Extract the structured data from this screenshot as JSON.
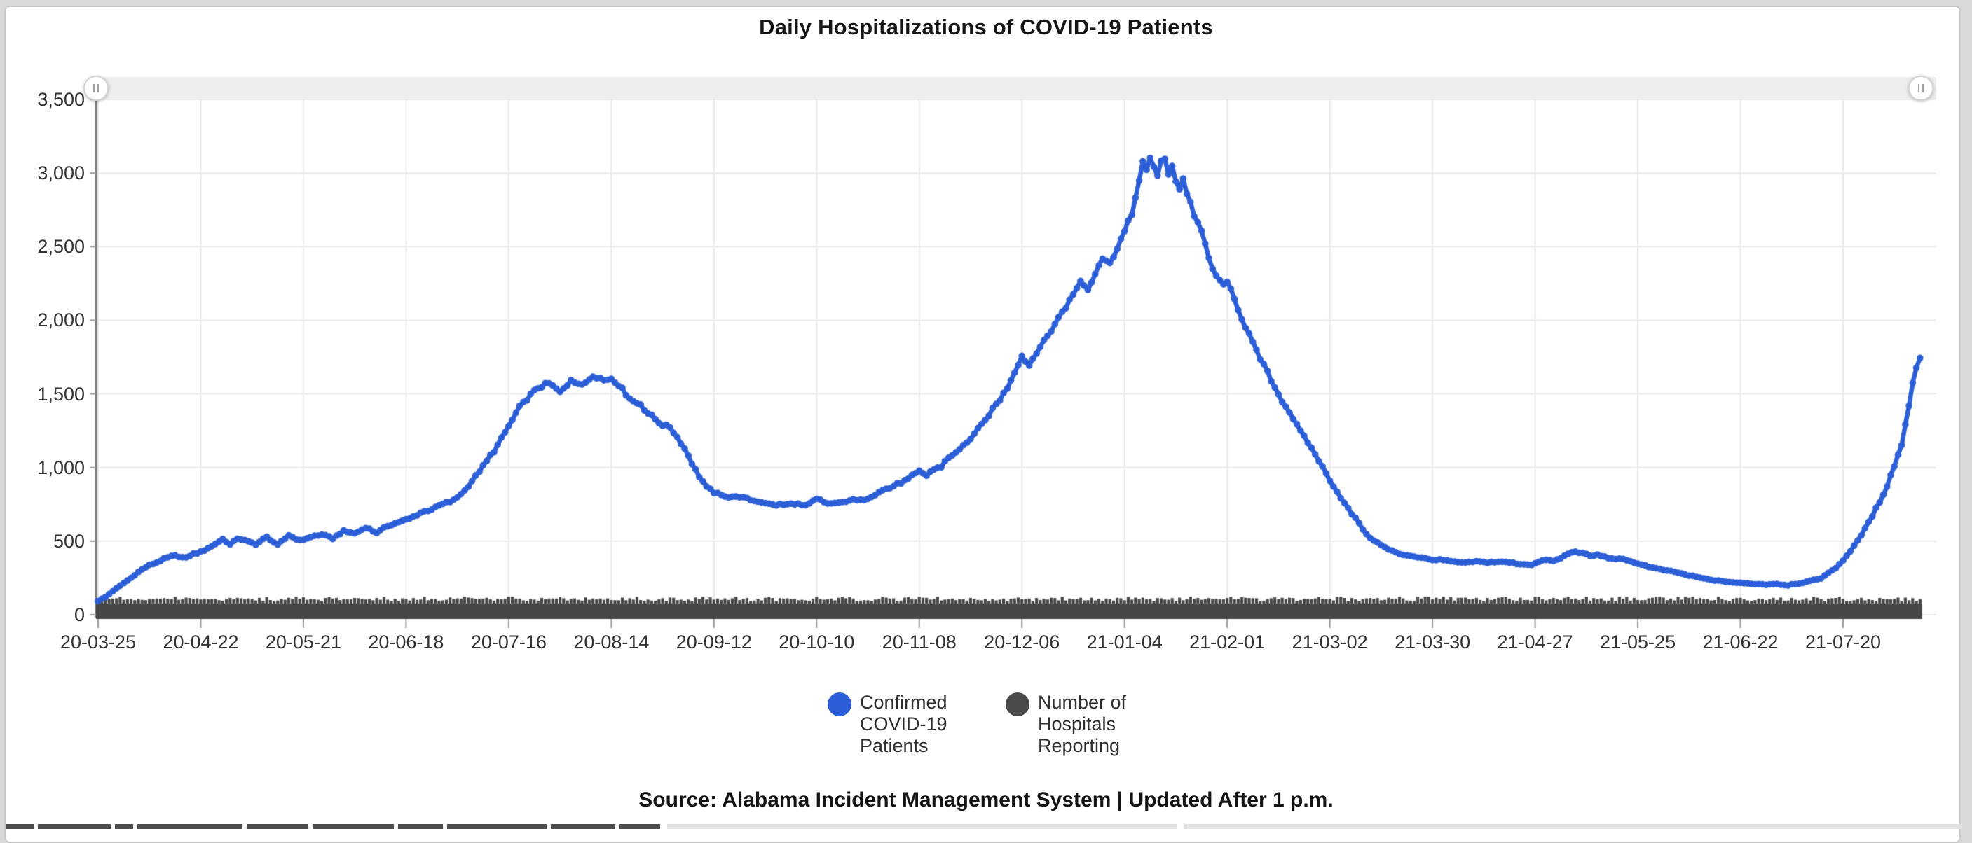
{
  "page": {
    "title": "Daily Hospitalizations of COVID-19 Patients",
    "source_note": "Source: Alabama Incident Management System | Updated After 1 p.m."
  },
  "colors": {
    "confirmed_series": "#2c5fd7",
    "hospitals_series": "#474747",
    "gridline": "#e9e9e9",
    "axis_line": "#7a7a7a",
    "tick_mark": "#9a9a9a",
    "axis_label": "#333333",
    "scrollbar_track": "#ededed",
    "card_border": "#c9c9c9",
    "page_background": "#d9d9d9",
    "strip_dark": "#4e4e4e",
    "strip_light": "#e2e2e2"
  },
  "scrollbar": {
    "left_handle_glyph": "||",
    "right_handle_glyph": "||"
  },
  "legend": {
    "items": [
      {
        "label": "Confirmed COVID-19 Patients",
        "color": "#2c5fd7"
      },
      {
        "label": "Number of Hospitals Reporting",
        "color": "#4a4a4a"
      }
    ]
  },
  "chart_data": {
    "type": "line",
    "title": "Daily Hospitalizations of COVID-19 Patients",
    "grid": true,
    "legend_position": "bottom",
    "scrollbar": "top",
    "y_axis": {
      "min": 0,
      "max": 3500,
      "tick_step": 500,
      "tick_labels": [
        "0",
        "500",
        "1,000",
        "1,500",
        "2,000",
        "2,500",
        "3,000",
        "3,500"
      ]
    },
    "x_axis": {
      "unit": "day",
      "days_per_tick": 28,
      "end_day": 497,
      "tick_labels": [
        "20-03-25",
        "20-04-22",
        "20-05-21",
        "20-06-18",
        "20-07-16",
        "20-08-14",
        "20-09-12",
        "20-10-10",
        "20-11-08",
        "20-12-06",
        "21-01-04",
        "21-02-01",
        "21-03-02",
        "21-03-30",
        "21-04-27",
        "21-05-25",
        "21-06-22",
        "21-07-20"
      ]
    },
    "series": [
      {
        "name": "Confirmed COVID-19 Patients",
        "color": "#2c5fd7",
        "style": "line-with-dot-markers",
        "points": [
          [
            0,
            95
          ],
          [
            2,
            122
          ],
          [
            4,
            162
          ],
          [
            7,
            216
          ],
          [
            9,
            252
          ],
          [
            11,
            292
          ],
          [
            14,
            336
          ],
          [
            16,
            356
          ],
          [
            18,
            378
          ],
          [
            21,
            402
          ],
          [
            24,
            384
          ],
          [
            26,
            412
          ],
          [
            28,
            430
          ],
          [
            31,
            464
          ],
          [
            34,
            514
          ],
          [
            36,
            480
          ],
          [
            38,
            522
          ],
          [
            40,
            506
          ],
          [
            43,
            480
          ],
          [
            46,
            524
          ],
          [
            49,
            470
          ],
          [
            52,
            542
          ],
          [
            55,
            504
          ],
          [
            58,
            524
          ],
          [
            61,
            550
          ],
          [
            64,
            520
          ],
          [
            67,
            570
          ],
          [
            70,
            550
          ],
          [
            73,
            590
          ],
          [
            76,
            560
          ],
          [
            79,
            604
          ],
          [
            82,
            630
          ],
          [
            85,
            650
          ],
          [
            88,
            694
          ],
          [
            91,
            720
          ],
          [
            94,
            750
          ],
          [
            97,
            780
          ],
          [
            100,
            844
          ],
          [
            103,
            938
          ],
          [
            106,
            1038
          ],
          [
            109,
            1158
          ],
          [
            112,
            1288
          ],
          [
            115,
            1408
          ],
          [
            118,
            1488
          ],
          [
            120,
            1538
          ],
          [
            123,
            1568
          ],
          [
            126,
            1514
          ],
          [
            129,
            1594
          ],
          [
            132,
            1550
          ],
          [
            135,
            1620
          ],
          [
            138,
            1588
          ],
          [
            140,
            1602
          ],
          [
            142,
            1556
          ],
          [
            144,
            1492
          ],
          [
            146,
            1442
          ],
          [
            148,
            1432
          ],
          [
            150,
            1362
          ],
          [
            152,
            1322
          ],
          [
            154,
            1288
          ],
          [
            156,
            1272
          ],
          [
            158,
            1202
          ],
          [
            160,
            1122
          ],
          [
            162,
            1032
          ],
          [
            164,
            942
          ],
          [
            166,
            862
          ],
          [
            168,
            832
          ],
          [
            170,
            812
          ],
          [
            172,
            796
          ],
          [
            175,
            806
          ],
          [
            178,
            782
          ],
          [
            181,
            764
          ],
          [
            184,
            752
          ],
          [
            187,
            744
          ],
          [
            190,
            754
          ],
          [
            193,
            742
          ],
          [
            196,
            782
          ],
          [
            199,
            762
          ],
          [
            202,
            754
          ],
          [
            205,
            774
          ],
          [
            208,
            778
          ],
          [
            210,
            792
          ],
          [
            213,
            832
          ],
          [
            216,
            862
          ],
          [
            219,
            902
          ],
          [
            222,
            938
          ],
          [
            224,
            968
          ],
          [
            226,
            942
          ],
          [
            228,
            992
          ],
          [
            230,
            1012
          ],
          [
            232,
            1062
          ],
          [
            234,
            1102
          ],
          [
            236,
            1152
          ],
          [
            238,
            1202
          ],
          [
            240,
            1262
          ],
          [
            242,
            1322
          ],
          [
            244,
            1392
          ],
          [
            246,
            1462
          ],
          [
            248,
            1542
          ],
          [
            250,
            1642
          ],
          [
            252,
            1756
          ],
          [
            254,
            1692
          ],
          [
            256,
            1782
          ],
          [
            258,
            1852
          ],
          [
            260,
            1932
          ],
          [
            262,
            2012
          ],
          [
            264,
            2102
          ],
          [
            266,
            2182
          ],
          [
            268,
            2262
          ],
          [
            270,
            2212
          ],
          [
            272,
            2332
          ],
          [
            274,
            2422
          ],
          [
            276,
            2382
          ],
          [
            278,
            2502
          ],
          [
            280,
            2602
          ],
          [
            282,
            2722
          ],
          [
            283,
            2852
          ],
          [
            284,
            2952
          ],
          [
            285,
            3062
          ],
          [
            286,
            3002
          ],
          [
            287,
            3092
          ],
          [
            288,
            3042
          ],
          [
            289,
            2982
          ],
          [
            290,
            3072
          ],
          [
            291,
            3088
          ],
          [
            292,
            2992
          ],
          [
            293,
            3062
          ],
          [
            294,
            2952
          ],
          [
            295,
            2892
          ],
          [
            296,
            2962
          ],
          [
            297,
            2872
          ],
          [
            298,
            2802
          ],
          [
            299,
            2722
          ],
          [
            300,
            2652
          ],
          [
            301,
            2582
          ],
          [
            302,
            2502
          ],
          [
            303,
            2432
          ],
          [
            304,
            2362
          ],
          [
            305,
            2302
          ],
          [
            306,
            2272
          ],
          [
            308,
            2252
          ],
          [
            310,
            2132
          ],
          [
            312,
            2012
          ],
          [
            314,
            1902
          ],
          [
            316,
            1792
          ],
          [
            318,
            1692
          ],
          [
            320,
            1592
          ],
          [
            322,
            1502
          ],
          [
            324,
            1412
          ],
          [
            326,
            1332
          ],
          [
            328,
            1252
          ],
          [
            330,
            1172
          ],
          [
            332,
            1092
          ],
          [
            334,
            1002
          ],
          [
            336,
            912
          ],
          [
            338,
            832
          ],
          [
            340,
            752
          ],
          [
            342,
            682
          ],
          [
            344,
            622
          ],
          [
            346,
            542
          ],
          [
            348,
            506
          ],
          [
            350,
            472
          ],
          [
            352,
            442
          ],
          [
            355,
            416
          ],
          [
            358,
            398
          ],
          [
            361,
            386
          ],
          [
            364,
            376
          ],
          [
            367,
            368
          ],
          [
            370,
            360
          ],
          [
            373,
            352
          ],
          [
            376,
            360
          ],
          [
            379,
            352
          ],
          [
            382,
            362
          ],
          [
            385,
            354
          ],
          [
            388,
            346
          ],
          [
            391,
            342
          ],
          [
            393,
            356
          ],
          [
            395,
            372
          ],
          [
            397,
            362
          ],
          [
            399,
            382
          ],
          [
            401,
            412
          ],
          [
            403,
            428
          ],
          [
            405,
            416
          ],
          [
            407,
            398
          ],
          [
            409,
            408
          ],
          [
            411,
            392
          ],
          [
            413,
            378
          ],
          [
            415,
            386
          ],
          [
            417,
            370
          ],
          [
            419,
            356
          ],
          [
            421,
            340
          ],
          [
            423,
            328
          ],
          [
            425,
            316
          ],
          [
            428,
            300
          ],
          [
            431,
            286
          ],
          [
            434,
            268
          ],
          [
            437,
            252
          ],
          [
            440,
            238
          ],
          [
            443,
            228
          ],
          [
            446,
            220
          ],
          [
            449,
            214
          ],
          [
            452,
            208
          ],
          [
            455,
            204
          ],
          [
            458,
            208
          ],
          [
            461,
            202
          ],
          [
            464,
            212
          ],
          [
            467,
            228
          ],
          [
            470,
            248
          ],
          [
            472,
            280
          ],
          [
            474,
            320
          ],
          [
            476,
            372
          ],
          [
            478,
            430
          ],
          [
            480,
            500
          ],
          [
            482,
            580
          ],
          [
            484,
            670
          ],
          [
            486,
            770
          ],
          [
            488,
            880
          ],
          [
            490,
            1010
          ],
          [
            492,
            1160
          ],
          [
            493,
            1290
          ],
          [
            494,
            1430
          ],
          [
            495,
            1580
          ],
          [
            496,
            1690
          ],
          [
            497,
            1748
          ]
        ]
      },
      {
        "name": "Number of Hospitals Reporting",
        "color": "#474747",
        "style": "thick-jagged-band",
        "approx_daily_value": 105,
        "value_range": [
          90,
          122
        ]
      }
    ]
  }
}
